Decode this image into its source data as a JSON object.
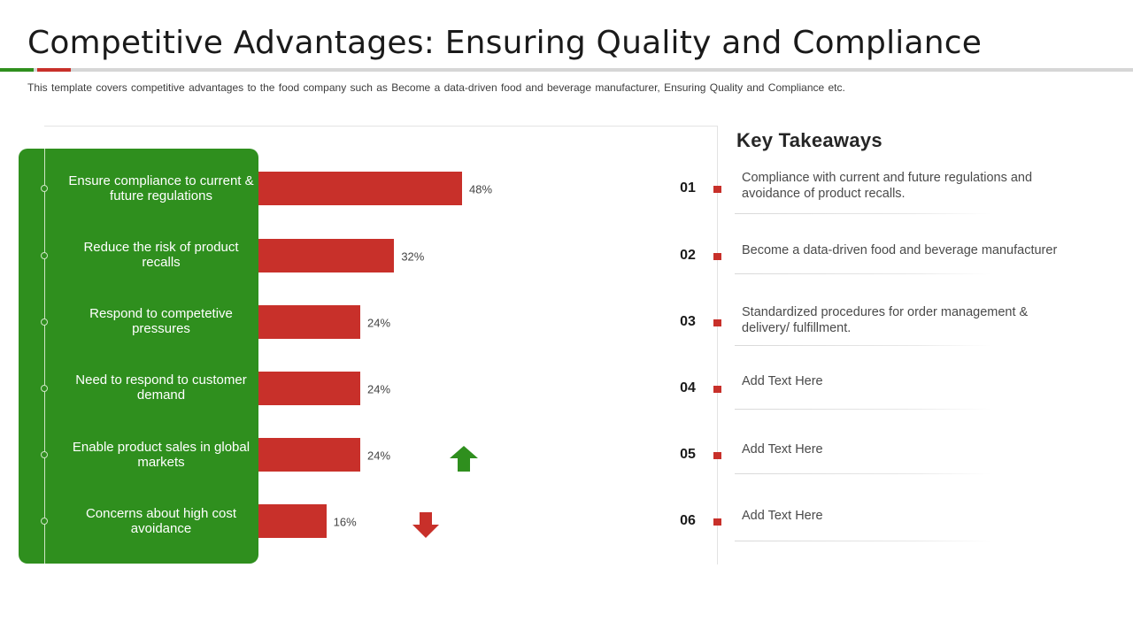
{
  "page": {
    "title": "Competitive Advantages: Ensuring Quality and Compliance",
    "subtitle": "This template covers competitive advantages  to the food company such as Become a data-driven  food and beverage  manufacturer,  Ensuring Quality and Compliance etc."
  },
  "colors": {
    "panel_green": "#2f8f1e",
    "bar_red": "#c8302a",
    "up_arrow": "#2f8f1e",
    "down_arrow": "#c8302a"
  },
  "chart_data": {
    "type": "bar",
    "orientation": "horizontal",
    "categories": [
      "Ensure compliance to current & future regulations",
      "Reduce the risk of product recalls",
      "Respond to competetive pressures",
      "Need to respond to customer demand",
      "Enable product sales in global markets",
      "Concerns about high cost avoidance"
    ],
    "values": [
      48,
      32,
      24,
      24,
      24,
      16
    ],
    "value_labels": [
      "48%",
      "32%",
      "24%",
      "24%",
      "24%",
      "16%"
    ],
    "unit": "%",
    "xlim": [
      0,
      100
    ],
    "grid": false,
    "legend": "none"
  },
  "indicators": {
    "up_arrow_icon": "arrow-up-icon",
    "down_arrow_icon": "arrow-down-icon"
  },
  "takeaways": {
    "heading": "Key Takeaways",
    "items": [
      {
        "number": "01",
        "text": "Compliance with current and future regulations and avoidance of product recalls."
      },
      {
        "number": "02",
        "text": "Become a data-driven food and beverage manufacturer"
      },
      {
        "number": "03",
        "text": "Standardized procedures for order management & delivery/ fulfillment."
      },
      {
        "number": "04",
        "text": "Add Text Here"
      },
      {
        "number": "05",
        "text": "Add Text Here"
      },
      {
        "number": "06",
        "text": "Add Text Here"
      }
    ]
  }
}
